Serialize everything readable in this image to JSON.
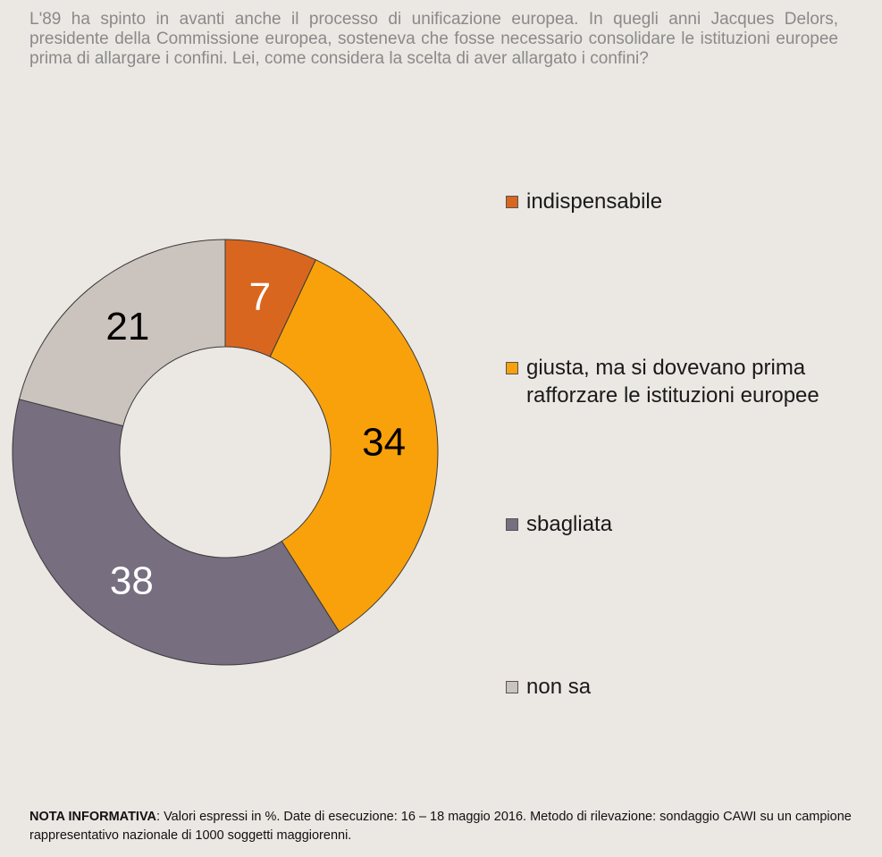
{
  "question": "L'89 ha spinto in avanti anche il processo di unificazione europea. In quegli anni Jacques Delors, presidente della Commissione europea, sosteneva che fosse necessario consolidare le istituzioni europee prima di allargare i confini. Lei, come considera la scelta di aver allargato i confini?",
  "chart_data": {
    "type": "pie",
    "variant": "donut",
    "title": "",
    "legend_position": "right",
    "slices": [
      {
        "label": "indispensabile",
        "value": 7,
        "color": "#d9661f",
        "label_color": "#ffffff"
      },
      {
        "label": "giusta, ma si dovevano prima rafforzare le istituzioni europee",
        "value": 34,
        "color": "#f9a10b",
        "label_color": "#000000"
      },
      {
        "label": "sbagliata",
        "value": 38,
        "color": "#776e80",
        "label_color": "#ffffff"
      },
      {
        "label": "non sa",
        "value": 21,
        "color": "#cbc3bd",
        "label_color": "#000000"
      }
    ]
  },
  "legend": [
    {
      "lines": [
        "indispensabile"
      ],
      "color": "#d9661f"
    },
    {
      "lines": [
        "giusta, ma si dovevano prima",
        "rafforzare le istituzioni europee"
      ],
      "color": "#f9a10b"
    },
    {
      "lines": [
        "sbagliata"
      ],
      "color": "#776e80"
    },
    {
      "lines": [
        "non sa"
      ],
      "color": "#cbc3bd"
    }
  ],
  "note": {
    "label": "NOTA INFORMATIVA",
    "text": ": Valori espressi in %. Date di esecuzione: 16 – 18 maggio 2016. Metodo di rilevazione: sondaggio CAWI su un campione rappresentativo nazionale di 1000 soggetti maggiorenni."
  }
}
